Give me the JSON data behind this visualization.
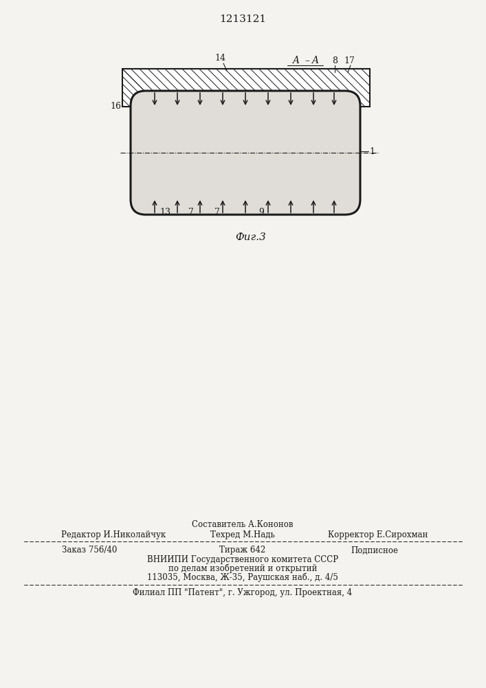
{
  "patent_number": "1213121",
  "bg_color": "#f5f3ef",
  "drawing_color": "#1a1a1a",
  "patent_footer": {
    "sestavitel": "Составитель А.Кононов",
    "redaktor": "Редактор И.Николайчук",
    "tehred": "Техред М.Надь",
    "korrektor": "Корректор Е.Сирохман",
    "zakaz": "Заказ 756/40",
    "tirazh": "Тираж 642",
    "podpisnoe": "Подписное",
    "vniipи": "ВНИИПИ Государственного комитета СССР",
    "dela": "по делам изобретений и открытий",
    "address": "113035, Москва, Ж-35, Раушская наб., д. 4/5",
    "filial": "Филиал ПП \"Патент\", г. Ужгород, ул. Проектная, 4"
  }
}
